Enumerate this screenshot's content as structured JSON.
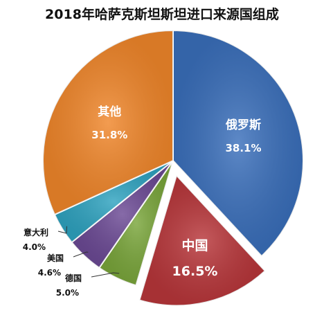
{
  "chart_data": {
    "type": "pie",
    "title": "2018年哈萨克斯坦斯坦进口来源国组成",
    "slices": [
      {
        "label": "俄罗斯",
        "value": 38.1,
        "value_text": "38.1%",
        "color": "#3a6fbb",
        "exploded": false,
        "label_inside": true
      },
      {
        "label": "中国",
        "value": 16.5,
        "value_text": "16.5%",
        "color": "#b8363a",
        "exploded": true,
        "label_inside": true
      },
      {
        "label": "德国",
        "value": 5.0,
        "value_text": "5.0%",
        "color": "#7aa63b",
        "exploded": false,
        "label_inside": false
      },
      {
        "label": "美国",
        "value": 4.6,
        "value_text": "4.6%",
        "color": "#6c4a95",
        "exploded": false,
        "label_inside": false
      },
      {
        "label": "意大利",
        "value": 4.0,
        "value_text": "4.0%",
        "color": "#2fa3c0",
        "exploded": false,
        "label_inside": false
      },
      {
        "label": "其他",
        "value": 31.8,
        "value_text": "31.8%",
        "color": "#f0862a",
        "exploded": false,
        "label_inside": true
      }
    ]
  }
}
